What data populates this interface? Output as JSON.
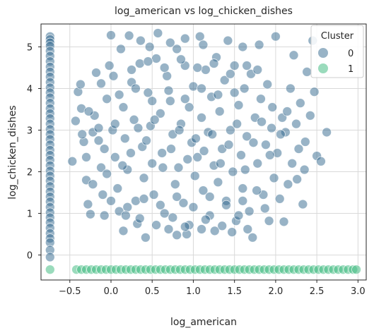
{
  "chart_data": {
    "type": "scatter",
    "title": "log_american vs log_chicken_dishes",
    "xlabel": "log_american",
    "ylabel": "log_chicken_dishes",
    "xlim": [
      -0.85,
      3.1
    ],
    "ylim": [
      -0.6,
      5.55
    ],
    "x_ticks": [
      -0.5,
      0.0,
      0.5,
      1.0,
      1.5,
      2.0,
      2.5,
      3.0
    ],
    "x_tick_labels": [
      "−0.5",
      "0.0",
      "0.5",
      "1.0",
      "1.5",
      "2.0",
      "2.5",
      "3.0"
    ],
    "y_ticks": [
      0,
      1,
      2,
      3,
      4,
      5
    ],
    "y_tick_labels": [
      "0",
      "1",
      "2",
      "3",
      "4",
      "5"
    ],
    "grid": true,
    "legend": {
      "title": "Cluster",
      "placement": "top-right",
      "entries": [
        {
          "label": "0",
          "color": "#31688e"
        },
        {
          "label": "1",
          "color": "#35b779"
        }
      ]
    },
    "series": [
      {
        "name": "0",
        "color": "#31688e",
        "points": [
          [
            -0.74,
            5.25
          ],
          [
            -0.74,
            5.18
          ],
          [
            -0.74,
            5.1
          ],
          [
            -0.74,
            5.02
          ],
          [
            -0.74,
            4.9
          ],
          [
            -0.74,
            4.78
          ],
          [
            -0.74,
            4.65
          ],
          [
            -0.74,
            4.52
          ],
          [
            -0.74,
            4.4
          ],
          [
            -0.74,
            4.28
          ],
          [
            -0.74,
            4.15
          ],
          [
            -0.74,
            4.02
          ],
          [
            -0.74,
            3.9
          ],
          [
            -0.74,
            3.78
          ],
          [
            -0.74,
            3.65
          ],
          [
            -0.74,
            3.52
          ],
          [
            -0.74,
            3.4
          ],
          [
            -0.74,
            3.28
          ],
          [
            -0.74,
            3.15
          ],
          [
            -0.74,
            3.02
          ],
          [
            -0.74,
            2.9
          ],
          [
            -0.74,
            2.78
          ],
          [
            -0.74,
            2.65
          ],
          [
            -0.74,
            2.52
          ],
          [
            -0.74,
            2.4
          ],
          [
            -0.74,
            2.28
          ],
          [
            -0.74,
            2.15
          ],
          [
            -0.74,
            2.02
          ],
          [
            -0.74,
            1.9
          ],
          [
            -0.74,
            1.78
          ],
          [
            -0.74,
            1.65
          ],
          [
            -0.74,
            1.52
          ],
          [
            -0.74,
            1.4
          ],
          [
            -0.74,
            1.28
          ],
          [
            -0.74,
            1.15
          ],
          [
            -0.74,
            1.02
          ],
          [
            -0.74,
            0.9
          ],
          [
            -0.74,
            0.78
          ],
          [
            -0.74,
            0.65
          ],
          [
            -0.74,
            0.52
          ],
          [
            -0.74,
            0.4
          ],
          [
            -0.74,
            0.3
          ],
          [
            -0.74,
            0.12
          ],
          [
            -0.74,
            -0.05
          ],
          [
            -0.47,
            2.25
          ],
          [
            -0.43,
            3.22
          ],
          [
            -0.4,
            3.92
          ],
          [
            -0.37,
            4.1
          ],
          [
            -0.36,
            3.52
          ],
          [
            -0.33,
            2.72
          ],
          [
            -0.3,
            1.8
          ],
          [
            -0.28,
            1.22
          ],
          [
            -0.25,
            0.98
          ],
          [
            -0.22,
            2.95
          ],
          [
            -0.2,
            3.35
          ],
          [
            -0.18,
            4.38
          ],
          [
            -0.15,
            3.05
          ],
          [
            -0.12,
            2.1
          ],
          [
            -0.1,
            1.45
          ],
          [
            -0.08,
            2.55
          ],
          [
            -0.05,
            3.75
          ],
          [
            -0.02,
            4.55
          ],
          [
            0.0,
            5.28
          ],
          [
            0.02,
            3.0
          ],
          [
            0.05,
            2.35
          ],
          [
            0.08,
            1.6
          ],
          [
            0.1,
            1.05
          ],
          [
            0.12,
            4.95
          ],
          [
            0.15,
            3.55
          ],
          [
            0.17,
            2.8
          ],
          [
            0.2,
            2.05
          ],
          [
            0.22,
            5.27
          ],
          [
            0.25,
            4.15
          ],
          [
            0.28,
            3.25
          ],
          [
            0.3,
            1.3
          ],
          [
            0.32,
            0.75
          ],
          [
            0.35,
            4.6
          ],
          [
            0.38,
            2.6
          ],
          [
            0.4,
            1.85
          ],
          [
            0.42,
            0.42
          ],
          [
            0.45,
            3.9
          ],
          [
            0.48,
            3.1
          ],
          [
            0.5,
            2.2
          ],
          [
            0.52,
            1.45
          ],
          [
            0.55,
            4.72
          ],
          [
            0.57,
            5.33
          ],
          [
            0.6,
            3.4
          ],
          [
            0.62,
            2.45
          ],
          [
            0.65,
            1.0
          ],
          [
            0.68,
            4.3
          ],
          [
            0.7,
            0.62
          ],
          [
            0.72,
            3.7
          ],
          [
            0.75,
            2.9
          ],
          [
            0.78,
            1.7
          ],
          [
            0.8,
            4.95
          ],
          [
            0.82,
            2.1
          ],
          [
            0.85,
            3.15
          ],
          [
            0.88,
            1.25
          ],
          [
            0.9,
            4.55
          ],
          [
            0.92,
            0.5
          ],
          [
            0.95,
            3.55
          ],
          [
            0.98,
            2.7
          ],
          [
            1.0,
            4.05
          ],
          [
            1.02,
            1.9
          ],
          [
            1.05,
            2.35
          ],
          [
            1.08,
            5.25
          ],
          [
            1.1,
            3.3
          ],
          [
            1.12,
            1.55
          ],
          [
            1.15,
            4.45
          ],
          [
            1.18,
            2.95
          ],
          [
            1.2,
            0.95
          ],
          [
            1.22,
            3.8
          ],
          [
            1.25,
            2.15
          ],
          [
            1.28,
            4.75
          ],
          [
            1.3,
            1.75
          ],
          [
            1.32,
            3.45
          ],
          [
            1.35,
            2.55
          ],
          [
            1.38,
            4.2
          ],
          [
            1.4,
            1.3
          ],
          [
            1.42,
            5.15
          ],
          [
            1.45,
            3.0
          ],
          [
            1.48,
            2.0
          ],
          [
            1.5,
            4.55
          ],
          [
            1.52,
            0.82
          ],
          [
            1.55,
            3.6
          ],
          [
            1.58,
            2.4
          ],
          [
            1.6,
            1.6
          ],
          [
            1.62,
            4.0
          ],
          [
            1.65,
            2.85
          ],
          [
            1.68,
            1.05
          ],
          [
            1.7,
            4.35
          ],
          [
            1.72,
            0.42
          ],
          [
            1.75,
            3.3
          ],
          [
            1.78,
            2.2
          ],
          [
            1.8,
            5.05
          ],
          [
            1.82,
            3.75
          ],
          [
            1.85,
            1.45
          ],
          [
            1.88,
            2.65
          ],
          [
            1.9,
            4.1
          ],
          [
            1.92,
            0.82
          ],
          [
            1.95,
            3.05
          ],
          [
            1.98,
            1.85
          ],
          [
            2.0,
            5.25
          ],
          [
            2.02,
            2.45
          ],
          [
            2.05,
            1.35
          ],
          [
            2.08,
            3.3
          ],
          [
            2.1,
            0.8
          ],
          [
            2.12,
            2.95
          ],
          [
            2.15,
            1.7
          ],
          [
            2.18,
            4.0
          ],
          [
            2.2,
            2.2
          ],
          [
            2.22,
            4.8
          ],
          [
            2.25,
            3.15
          ],
          [
            2.28,
            2.55
          ],
          [
            2.3,
            3.65
          ],
          [
            2.33,
            1.22
          ],
          [
            2.35,
            2.05
          ],
          [
            2.38,
            4.4
          ],
          [
            2.42,
            3.35
          ],
          [
            2.45,
            5.15
          ],
          [
            2.47,
            3.92
          ],
          [
            2.5,
            2.38
          ],
          [
            2.55,
            2.25
          ],
          [
            2.62,
            2.95
          ],
          [
            -0.3,
            2.35
          ],
          [
            -0.22,
            1.7
          ],
          [
            -0.15,
            2.75
          ],
          [
            -0.05,
            1.95
          ],
          [
            0.05,
            3.15
          ],
          [
            0.14,
            2.15
          ],
          [
            0.24,
            2.45
          ],
          [
            0.33,
            3.05
          ],
          [
            0.43,
            2.75
          ],
          [
            0.53,
            3.25
          ],
          [
            0.63,
            2.1
          ],
          [
            0.73,
            2.55
          ],
          [
            0.83,
            3.0
          ],
          [
            0.93,
            2.3
          ],
          [
            1.03,
            2.8
          ],
          [
            1.13,
            2.5
          ],
          [
            1.23,
            2.9
          ],
          [
            1.33,
            2.2
          ],
          [
            1.43,
            2.65
          ],
          [
            1.53,
            3.15
          ],
          [
            1.63,
            2.05
          ],
          [
            1.73,
            2.7
          ],
          [
            1.83,
            3.2
          ],
          [
            1.93,
            2.4
          ],
          [
            0.1,
            3.85
          ],
          [
            0.3,
            4.0
          ],
          [
            0.5,
            3.7
          ],
          [
            0.7,
            3.95
          ],
          [
            0.9,
            3.75
          ],
          [
            1.1,
            4.0
          ],
          [
            1.3,
            3.85
          ],
          [
            1.5,
            3.9
          ],
          [
            0.0,
            1.3
          ],
          [
            0.2,
            1.15
          ],
          [
            0.4,
            1.35
          ],
          [
            0.6,
            1.2
          ],
          [
            0.8,
            1.4
          ],
          [
            1.0,
            1.15
          ],
          [
            1.2,
            1.4
          ],
          [
            1.4,
            1.2
          ],
          [
            1.6,
            1.3
          ],
          [
            0.15,
            0.58
          ],
          [
            0.35,
            0.88
          ],
          [
            0.55,
            0.72
          ],
          [
            0.75,
            0.9
          ],
          [
            0.95,
            0.72
          ],
          [
            1.15,
            0.85
          ],
          [
            1.35,
            0.7
          ],
          [
            1.55,
            0.95
          ],
          [
            0.25,
            4.45
          ],
          [
            0.45,
            4.65
          ],
          [
            0.65,
            4.5
          ],
          [
            0.85,
            4.7
          ],
          [
            1.05,
            4.5
          ],
          [
            1.25,
            4.6
          ],
          [
            1.45,
            4.35
          ],
          [
            1.65,
            4.55
          ],
          [
            0.8,
            0.48
          ],
          [
            0.9,
            0.68
          ],
          [
            1.1,
            0.62
          ],
          [
            2.06,
            2.9
          ],
          [
            2.14,
            3.45
          ],
          [
            2.26,
            1.82
          ],
          [
            2.36,
            2.72
          ],
          [
            1.96,
            3.55
          ],
          [
            1.87,
            1.12
          ],
          [
            -0.35,
            2.9
          ],
          [
            -0.27,
            3.45
          ],
          [
            -0.12,
            4.12
          ],
          [
            0.03,
            4.3
          ],
          [
            -0.08,
            0.95
          ],
          [
            0.18,
            0.95
          ],
          [
            0.47,
            5.0
          ],
          [
            0.72,
            5.1
          ],
          [
            1.12,
            5.05
          ],
          [
            1.6,
            5.0
          ],
          [
            1.78,
            4.45
          ],
          [
            0.9,
            5.2
          ],
          [
            0.36,
            5.15
          ],
          [
            1.26,
            0.58
          ],
          [
            1.47,
            0.55
          ],
          [
            1.66,
            0.62
          ],
          [
            1.77,
            1.55
          ]
        ]
      },
      {
        "name": "1",
        "color": "#35b779",
        "points": [
          [
            -0.74,
            -0.35
          ],
          [
            -0.42,
            -0.35
          ],
          [
            -0.36,
            -0.35
          ],
          [
            -0.3,
            -0.35
          ],
          [
            -0.24,
            -0.35
          ],
          [
            -0.18,
            -0.35
          ],
          [
            -0.12,
            -0.35
          ],
          [
            -0.06,
            -0.35
          ],
          [
            0.0,
            -0.35
          ],
          [
            0.06,
            -0.35
          ],
          [
            0.12,
            -0.35
          ],
          [
            0.18,
            -0.35
          ],
          [
            0.24,
            -0.35
          ],
          [
            0.3,
            -0.35
          ],
          [
            0.36,
            -0.35
          ],
          [
            0.42,
            -0.35
          ],
          [
            0.48,
            -0.35
          ],
          [
            0.54,
            -0.35
          ],
          [
            0.6,
            -0.35
          ],
          [
            0.66,
            -0.35
          ],
          [
            0.72,
            -0.35
          ],
          [
            0.78,
            -0.35
          ],
          [
            0.84,
            -0.35
          ],
          [
            0.9,
            -0.35
          ],
          [
            0.96,
            -0.35
          ],
          [
            1.02,
            -0.35
          ],
          [
            1.08,
            -0.35
          ],
          [
            1.14,
            -0.35
          ],
          [
            1.2,
            -0.35
          ],
          [
            1.26,
            -0.35
          ],
          [
            1.32,
            -0.35
          ],
          [
            1.38,
            -0.35
          ],
          [
            1.44,
            -0.35
          ],
          [
            1.5,
            -0.35
          ],
          [
            1.56,
            -0.35
          ],
          [
            1.62,
            -0.35
          ],
          [
            1.68,
            -0.35
          ],
          [
            1.74,
            -0.35
          ],
          [
            1.8,
            -0.35
          ],
          [
            1.86,
            -0.35
          ],
          [
            1.92,
            -0.35
          ],
          [
            1.98,
            -0.35
          ],
          [
            2.04,
            -0.35
          ],
          [
            2.1,
            -0.35
          ],
          [
            2.16,
            -0.35
          ],
          [
            2.22,
            -0.35
          ],
          [
            2.28,
            -0.35
          ],
          [
            2.34,
            -0.35
          ],
          [
            2.4,
            -0.35
          ],
          [
            2.46,
            -0.35
          ],
          [
            2.52,
            -0.35
          ],
          [
            2.58,
            -0.35
          ],
          [
            2.64,
            -0.35
          ],
          [
            2.7,
            -0.35
          ],
          [
            2.76,
            -0.35
          ],
          [
            2.82,
            -0.35
          ],
          [
            2.88,
            -0.35
          ],
          [
            2.94,
            -0.35
          ],
          [
            2.98,
            -0.35
          ]
        ]
      }
    ]
  }
}
